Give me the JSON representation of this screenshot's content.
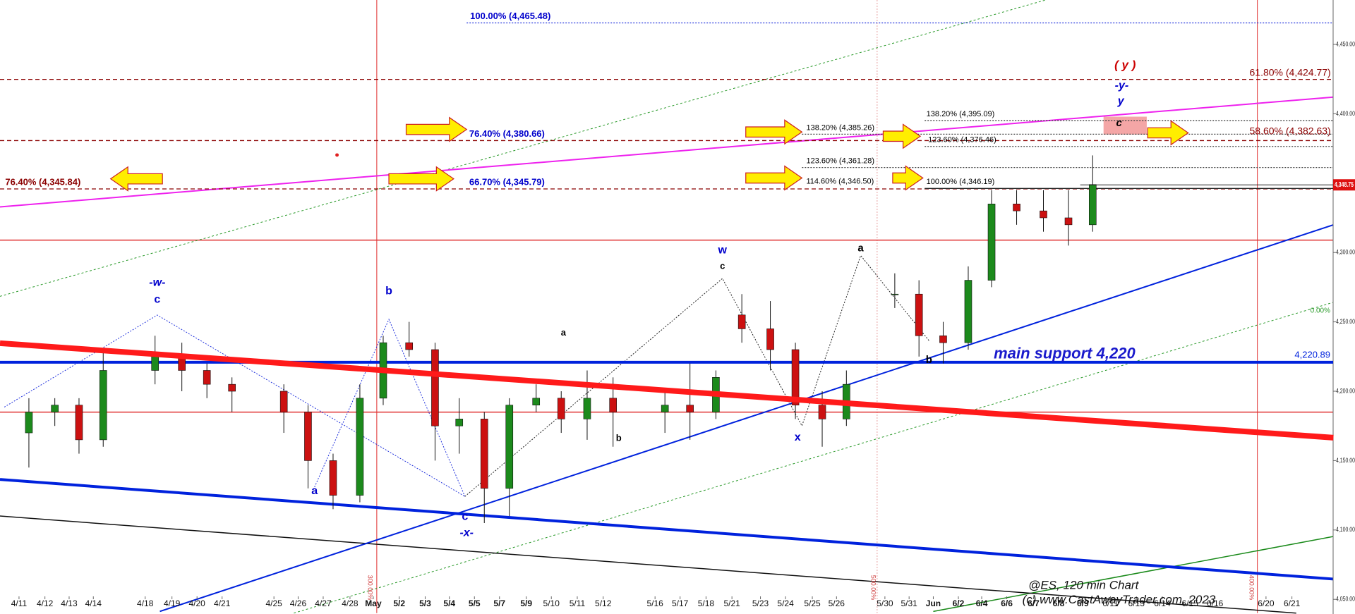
{
  "chart_data": {
    "type": "candlestick",
    "categories": [
      "4/11",
      "4/12",
      "4/13",
      "4/14",
      "4/18",
      "4/19",
      "4/20",
      "4/21",
      "4/25",
      "4/26",
      "4/27",
      "4/28",
      "May",
      "5/2",
      "5/3",
      "5/4",
      "5/5",
      "5/7",
      "5/9",
      "5/10",
      "5/11",
      "5/12",
      "5/16",
      "5/17",
      "5/18",
      "5/21",
      "5/23",
      "5/24",
      "5/25",
      "5/26",
      "5/30",
      "5/31",
      "Jun",
      "6/2",
      "6/4",
      "6/6",
      "6/7",
      "6/8",
      "6/9",
      "6/11",
      "6/13",
      "6/14",
      "6/15",
      "6/16",
      "6/20",
      "6/21"
    ],
    "open": [
      4170,
      4185,
      4190,
      4165,
      4215,
      4225,
      4215,
      4205,
      4200,
      4185,
      4150,
      4125,
      4195,
      4235,
      4230,
      4175,
      4180,
      4130,
      4190,
      4195,
      4180,
      4195,
      4185,
      4190,
      4185,
      4255,
      4245,
      4230,
      4190,
      4180,
      4270,
      4270,
      4240,
      4235,
      4280,
      4335,
      4330,
      4325,
      4320,
      null,
      null,
      null,
      null,
      null,
      null,
      null
    ],
    "high": [
      4195,
      4195,
      4195,
      4230,
      4240,
      4235,
      4220,
      4210,
      4205,
      4190,
      4155,
      4205,
      4240,
      4250,
      4235,
      4195,
      4185,
      4195,
      4205,
      4200,
      4215,
      4210,
      4200,
      4220,
      4215,
      4270,
      4265,
      4235,
      4200,
      4215,
      4285,
      4280,
      4250,
      4290,
      4345,
      4345,
      4345,
      4345,
      4370,
      null,
      null,
      null,
      null,
      null,
      null,
      null
    ],
    "low": [
      4145,
      4175,
      4155,
      4160,
      4205,
      4200,
      4195,
      4185,
      4170,
      4130,
      4115,
      4120,
      4190,
      4225,
      4150,
      4155,
      4105,
      4110,
      4185,
      4170,
      4165,
      4160,
      4170,
      4165,
      4180,
      4235,
      4215,
      4180,
      4160,
      4175,
      4260,
      4225,
      4220,
      4230,
      4275,
      4320,
      4315,
      4305,
      4315,
      null,
      null,
      null,
      null,
      null,
      null,
      null
    ],
    "close": [
      4185,
      4190,
      4165,
      4215,
      4225,
      4215,
      4205,
      4200,
      4185,
      4150,
      4125,
      4195,
      4235,
      4230,
      4175,
      4180,
      4130,
      4190,
      4195,
      4180,
      4195,
      4185,
      4190,
      4185,
      4210,
      4245,
      4230,
      4190,
      4180,
      4205,
      4270,
      4240,
      4235,
      4280,
      4335,
      4330,
      4325,
      4320,
      4349,
      null,
      null,
      null,
      null,
      null,
      null,
      null
    ],
    "up_color": "#1c8a1c",
    "down_color": "#cc1111",
    "ylim": [
      4043,
      4482
    ],
    "yticks": [
      {
        "value": 4050,
        "label": "4,050.00"
      },
      {
        "value": 4100,
        "label": "4,100.00"
      },
      {
        "value": 4150,
        "label": "4,150.00"
      },
      {
        "value": 4200,
        "label": "4,200.00"
      },
      {
        "value": 4250,
        "label": "4,250.00"
      },
      {
        "value": 4300,
        "label": "4,300.00"
      },
      {
        "value": 4350,
        "label": "4,350.00"
      },
      {
        "value": 4400,
        "label": "4,400.00"
      },
      {
        "value": 4450,
        "label": "4,450.00"
      }
    ],
    "last_price": {
      "value": 4348.75,
      "label": "4,348.75"
    },
    "support": {
      "value": 4220.89,
      "label": "4,220.89",
      "color": "#0022dd"
    },
    "support_note": "main support 4,220",
    "zero_label": "0.00%",
    "levels": [
      {
        "label": "100.00% (4,465.48)",
        "value": 4465.48,
        "color": "#0000cc"
      },
      {
        "label": "61.80% (4,424.77)",
        "value": 4424.77,
        "color": "#8b0000"
      },
      {
        "label": "76.40% (4,380.66)",
        "value": 4380.66,
        "color": "#0000cc"
      },
      {
        "label": "76.40% (4,345.84)",
        "value": 4345.84,
        "color": "#8b0000"
      },
      {
        "label": "66.70% (4,345.79)",
        "value": 4345.79,
        "color": "#0000cc"
      },
      {
        "label": "138.20% (4,385.26)",
        "value": 4385.26,
        "color": "#000000"
      },
      {
        "label": "123.60% (4,376.46)",
        "value": 4376.46,
        "color": "#000000"
      },
      {
        "label": "123.60% (4,361.28)",
        "value": 4361.28,
        "color": "#000000"
      },
      {
        "label": "114.60% (4,346.50)",
        "value": 4346.5,
        "color": "#000000"
      },
      {
        "label": "138.20% (4,395.09)",
        "value": 4395.09,
        "color": "#000000"
      },
      {
        "label": "100.00% (4,346.19)",
        "value": 4346.19,
        "color": "#000000"
      },
      {
        "label": "58.60% (4,382.63)",
        "value": 4382.63,
        "color": "#8b0000"
      }
    ],
    "annotations": [
      {
        "text": "-w-",
        "color": "#0000cc"
      },
      {
        "text": "c",
        "color": "#0000cc"
      },
      {
        "text": "b",
        "color": "#0000cc"
      },
      {
        "text": "a",
        "color": "#0000cc"
      },
      {
        "text": "c",
        "color": "#0000cc"
      },
      {
        "text": "-x-",
        "color": "#0000cc"
      },
      {
        "text": "a",
        "color": "#000000"
      },
      {
        "text": "b",
        "color": "#000000"
      },
      {
        "text": "w",
        "color": "#0000cc"
      },
      {
        "text": "c",
        "color": "#000000"
      },
      {
        "text": "x",
        "color": "#0000cc"
      },
      {
        "text": "a",
        "color": "#000000"
      },
      {
        "text": "b",
        "color": "#000000"
      },
      {
        "text": "( y )",
        "color": "#cc0000"
      },
      {
        "text": "-y-",
        "color": "#0000cc"
      },
      {
        "text": "y",
        "color": "#0000cc"
      },
      {
        "text": "c",
        "color": "#000000"
      }
    ],
    "time_markers": [
      "300.00%",
      "500.00%",
      "400.00%"
    ],
    "footer": [
      "@ES, 120 min Chart",
      "(c) www.CastAwayTrader.com, 2023"
    ]
  }
}
